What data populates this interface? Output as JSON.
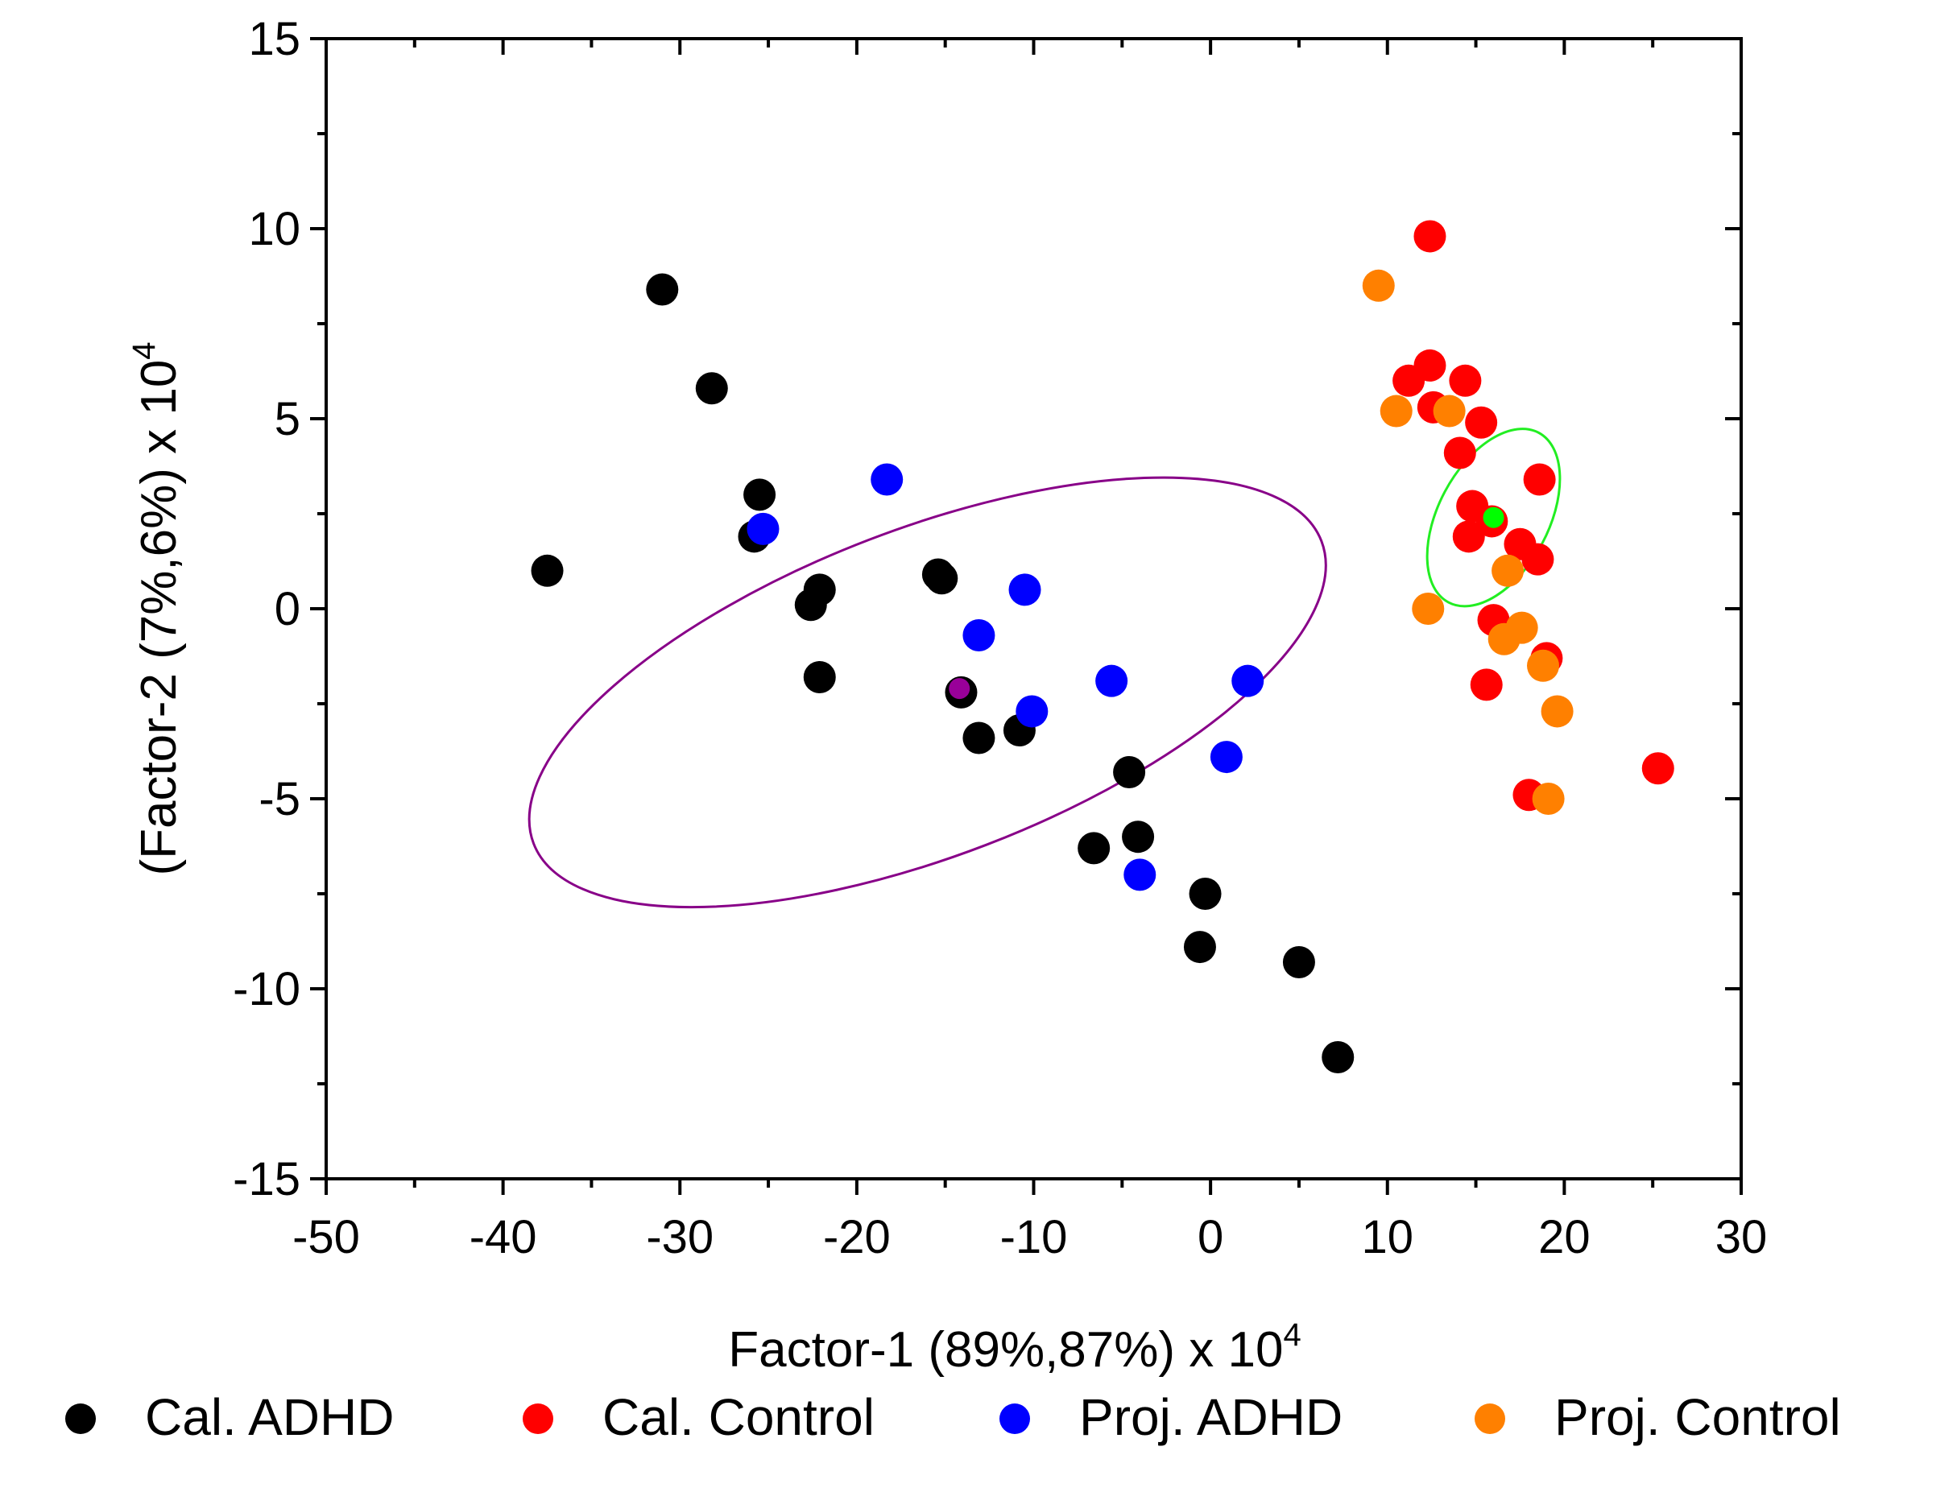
{
  "chart_data": {
    "type": "scatter",
    "xlabel": "Factor-1 (89%,87%) x 10",
    "xlabel_sup": "4",
    "ylabel": "(Factor-2 (7%,6%) x 10",
    "ylabel_sup": "4",
    "xlim": [
      -50,
      30
    ],
    "ylim": [
      -15,
      15
    ],
    "xticks": [
      -50,
      -40,
      -30,
      -20,
      -10,
      0,
      10,
      20,
      30
    ],
    "yticks": [
      -15,
      -10,
      -5,
      0,
      5,
      10,
      15
    ],
    "xtick_labels": [
      "-50",
      "-40",
      "-30",
      "-20",
      "-10",
      "0",
      "10",
      "20",
      "30"
    ],
    "ytick_labels": [
      "-15",
      "-10",
      "-5",
      "0",
      "5",
      "10",
      "15"
    ],
    "legend_position": "bottom",
    "series": [
      {
        "name": "Cal. ADHD",
        "color": "#000000",
        "points": [
          [
            -31,
            8.4
          ],
          [
            -28.2,
            5.8
          ],
          [
            -25.5,
            3.0
          ],
          [
            -25.8,
            1.9
          ],
          [
            -37.5,
            1.0
          ],
          [
            -22.1,
            0.5
          ],
          [
            -22.6,
            0.1
          ],
          [
            -22.1,
            -1.8
          ],
          [
            -15.4,
            0.9
          ],
          [
            -15.2,
            0.8
          ],
          [
            -14.1,
            -2.2
          ],
          [
            -13.1,
            -3.4
          ],
          [
            -10.8,
            -3.2
          ],
          [
            -4.6,
            -4.3
          ],
          [
            -4.1,
            -6.0
          ],
          [
            -6.6,
            -6.3
          ],
          [
            -0.3,
            -7.5
          ],
          [
            -0.6,
            -8.9
          ],
          [
            5.0,
            -9.3
          ],
          [
            7.2,
            -11.8
          ]
        ]
      },
      {
        "name": "Cal. Control",
        "color": "#ff0000",
        "points": [
          [
            12.4,
            9.8
          ],
          [
            11.2,
            6.0
          ],
          [
            12.4,
            6.4
          ],
          [
            14.4,
            6.0
          ],
          [
            12.6,
            5.3
          ],
          [
            15.3,
            4.9
          ],
          [
            14.1,
            4.1
          ],
          [
            18.6,
            3.4
          ],
          [
            14.8,
            2.7
          ],
          [
            15.9,
            2.3
          ],
          [
            14.6,
            1.9
          ],
          [
            17.5,
            1.7
          ],
          [
            18.5,
            1.3
          ],
          [
            16.0,
            -0.3
          ],
          [
            19.0,
            -1.3
          ],
          [
            15.6,
            -2.0
          ],
          [
            18.0,
            -4.9
          ],
          [
            25.3,
            -4.2
          ]
        ]
      },
      {
        "name": "Proj. ADHD",
        "color": "#0000ff",
        "points": [
          [
            -18.3,
            3.4
          ],
          [
            -25.3,
            2.1
          ],
          [
            -10.5,
            0.5
          ],
          [
            -13.1,
            -0.7
          ],
          [
            -10.1,
            -2.7
          ],
          [
            -5.6,
            -1.9
          ],
          [
            2.1,
            -1.9
          ],
          [
            0.9,
            -3.9
          ],
          [
            -4.0,
            -7.0
          ]
        ]
      },
      {
        "name": "Proj. Control",
        "color": "#ff8000",
        "points": [
          [
            9.5,
            8.5
          ],
          [
            10.5,
            5.2
          ],
          [
            13.5,
            5.2
          ],
          [
            16.8,
            1.0
          ],
          [
            12.3,
            0.0
          ],
          [
            17.6,
            -0.5
          ],
          [
            16.6,
            -0.8
          ],
          [
            18.8,
            -1.5
          ],
          [
            19.6,
            -2.7
          ],
          [
            19.1,
            -5.0
          ]
        ]
      }
    ],
    "group_centers": [
      {
        "name": "ADHD center",
        "color": "#990099",
        "x": -14.2,
        "y": -2.1
      },
      {
        "name": "Control center",
        "color": "#00ff00",
        "x": 16.0,
        "y": 2.4
      }
    ],
    "ellipses": [
      {
        "name": "ADHD confidence ellipse",
        "color": "#880088",
        "cx": -16.0,
        "cy": -2.2,
        "rx": 42.6,
        "ry": 4.3,
        "angle_deg": -21
      },
      {
        "name": "Control confidence ellipse",
        "color": "#22ee22",
        "cx": 16.0,
        "cy": 2.4,
        "rx": 9.7,
        "ry": 1.45,
        "angle_deg": -62
      }
    ]
  }
}
